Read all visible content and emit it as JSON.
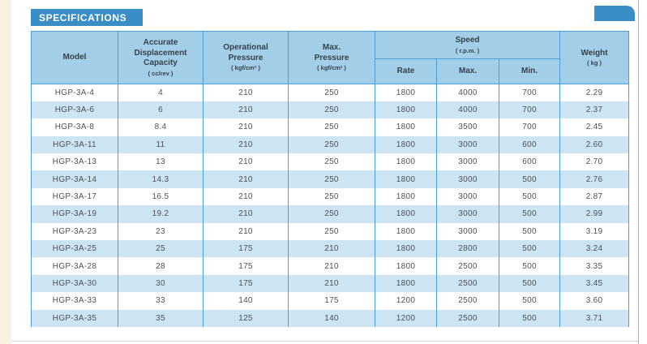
{
  "page": {
    "title": "SPECIFICATIONS"
  },
  "colors": {
    "title_bar": "#3a8dc5",
    "header_cell": "#a2cfe7",
    "row_stripe": "#cde4f2",
    "table_border": "#4d9fd3",
    "header_text": "#35414b",
    "data_text": "#4b5157",
    "page_edge": "#f7f2e2"
  },
  "table": {
    "headers": {
      "model": "Model",
      "displacement": "Accurate\nDisplacement\nCapacity",
      "displacement_unit": "( cc/rev )",
      "op_pressure": "Operational\nPressure",
      "op_pressure_unit": "( kgf/cm² )",
      "max_pressure": "Max.\nPressure",
      "max_pressure_unit": "( kgf/cm² )",
      "speed": "Speed",
      "speed_unit": "( r.p.m. )",
      "rate": "Rate",
      "max": "Max.",
      "min": "Min.",
      "weight": "Weight",
      "weight_unit": "( kg )"
    },
    "rows": [
      [
        "HGP-3A-4",
        "4",
        "210",
        "250",
        "1800",
        "4000",
        "700",
        "2.29"
      ],
      [
        "HGP-3A-6",
        "6",
        "210",
        "250",
        "1800",
        "4000",
        "700",
        "2.37"
      ],
      [
        "HGP-3A-8",
        "8.4",
        "210",
        "250",
        "1800",
        "3500",
        "700",
        "2.45"
      ],
      [
        "HGP-3A-11",
        "11",
        "210",
        "250",
        "1800",
        "3000",
        "600",
        "2.60"
      ],
      [
        "HGP-3A-13",
        "13",
        "210",
        "250",
        "1800",
        "3000",
        "600",
        "2.70"
      ],
      [
        "HGP-3A-14",
        "14.3",
        "210",
        "250",
        "1800",
        "3000",
        "500",
        "2.76"
      ],
      [
        "HGP-3A-17",
        "16.5",
        "210",
        "250",
        "1800",
        "3000",
        "500",
        "2.87"
      ],
      [
        "HGP-3A-19",
        "19.2",
        "210",
        "250",
        "1800",
        "3000",
        "500",
        "2.99"
      ],
      [
        "HGP-3A-23",
        "23",
        "210",
        "250",
        "1800",
        "3000",
        "500",
        "3.19"
      ],
      [
        "HGP-3A-25",
        "25",
        "175",
        "210",
        "1800",
        "2800",
        "500",
        "3.24"
      ],
      [
        "HGP-3A-28",
        "28",
        "175",
        "210",
        "1800",
        "2500",
        "500",
        "3.35"
      ],
      [
        "HGP-3A-30",
        "30",
        "175",
        "210",
        "1800",
        "2500",
        "500",
        "3.45"
      ],
      [
        "HGP-3A-33",
        "33",
        "140",
        "175",
        "1200",
        "2500",
        "500",
        "3.60"
      ],
      [
        "HGP-3A-35",
        "35",
        "125",
        "140",
        "1200",
        "2500",
        "500",
        "3.71"
      ]
    ]
  }
}
